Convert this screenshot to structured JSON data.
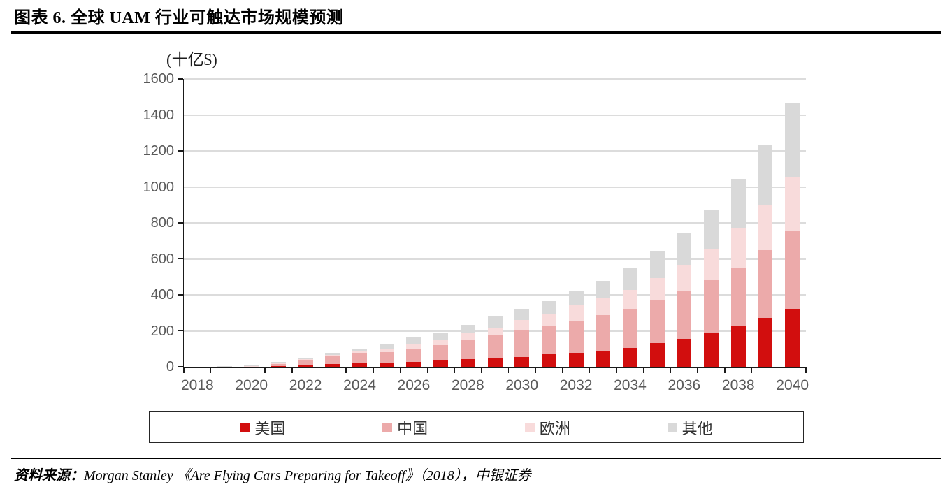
{
  "header": {
    "title": "图表 6. 全球 UAM 行业可触达市场规模预测"
  },
  "chart_data": {
    "type": "bar",
    "stacked": true,
    "title": "全球UAM行业可触达市场规模预测",
    "unit_label": "(十亿$)",
    "ylabel": "十亿$",
    "xlabel": "",
    "ylim": [
      0,
      1600
    ],
    "y_ticks": [
      0,
      200,
      400,
      600,
      800,
      1000,
      1200,
      1400,
      1600
    ],
    "grid": true,
    "legend_position": "bottom",
    "categories": [
      2018,
      2019,
      2020,
      2021,
      2022,
      2023,
      2024,
      2025,
      2026,
      2027,
      2028,
      2029,
      2030,
      2031,
      2032,
      2033,
      2034,
      2035,
      2036,
      2037,
      2038,
      2039,
      2040
    ],
    "x_tick_labels": [
      "2018",
      "2020",
      "2022",
      "2024",
      "2026",
      "2028",
      "2030",
      "2032",
      "2034",
      "2036",
      "2038",
      "2040"
    ],
    "series": [
      {
        "key": "us",
        "name": "美国",
        "color": "#d20e0e",
        "values": [
          0,
          1,
          1,
          3,
          10,
          15,
          21,
          24,
          29,
          35,
          43,
          50,
          55,
          69,
          78,
          90,
          106,
          131,
          156,
          188,
          226,
          272,
          320
        ]
      },
      {
        "key": "china",
        "name": "中国",
        "color": "#ecaaaa",
        "values": [
          0,
          1,
          2,
          14,
          25,
          42,
          52,
          56,
          72,
          85,
          110,
          125,
          146,
          160,
          177,
          198,
          218,
          242,
          268,
          295,
          324,
          375,
          437
        ]
      },
      {
        "key": "europe",
        "name": "欧洲",
        "color": "#f8dbdb",
        "values": [
          0,
          1,
          1,
          4,
          6,
          10,
          13,
          17,
          28,
          29,
          36,
          40,
          58,
          65,
          85,
          91,
          104,
          119,
          141,
          170,
          218,
          255,
          295
        ]
      },
      {
        "key": "other",
        "name": "其他",
        "color": "#d9d9d9",
        "values": [
          0,
          1,
          2,
          5,
          7,
          10,
          12,
          28,
          33,
          39,
          44,
          65,
          64,
          72,
          80,
          100,
          123,
          149,
          182,
          218,
          276,
          335,
          413
        ]
      }
    ]
  },
  "footer": {
    "source_prefix": "资料来源：",
    "source_text": "Morgan Stanley 《Are Flying Cars Preparing for Takeoff》（2018），中银证券"
  }
}
